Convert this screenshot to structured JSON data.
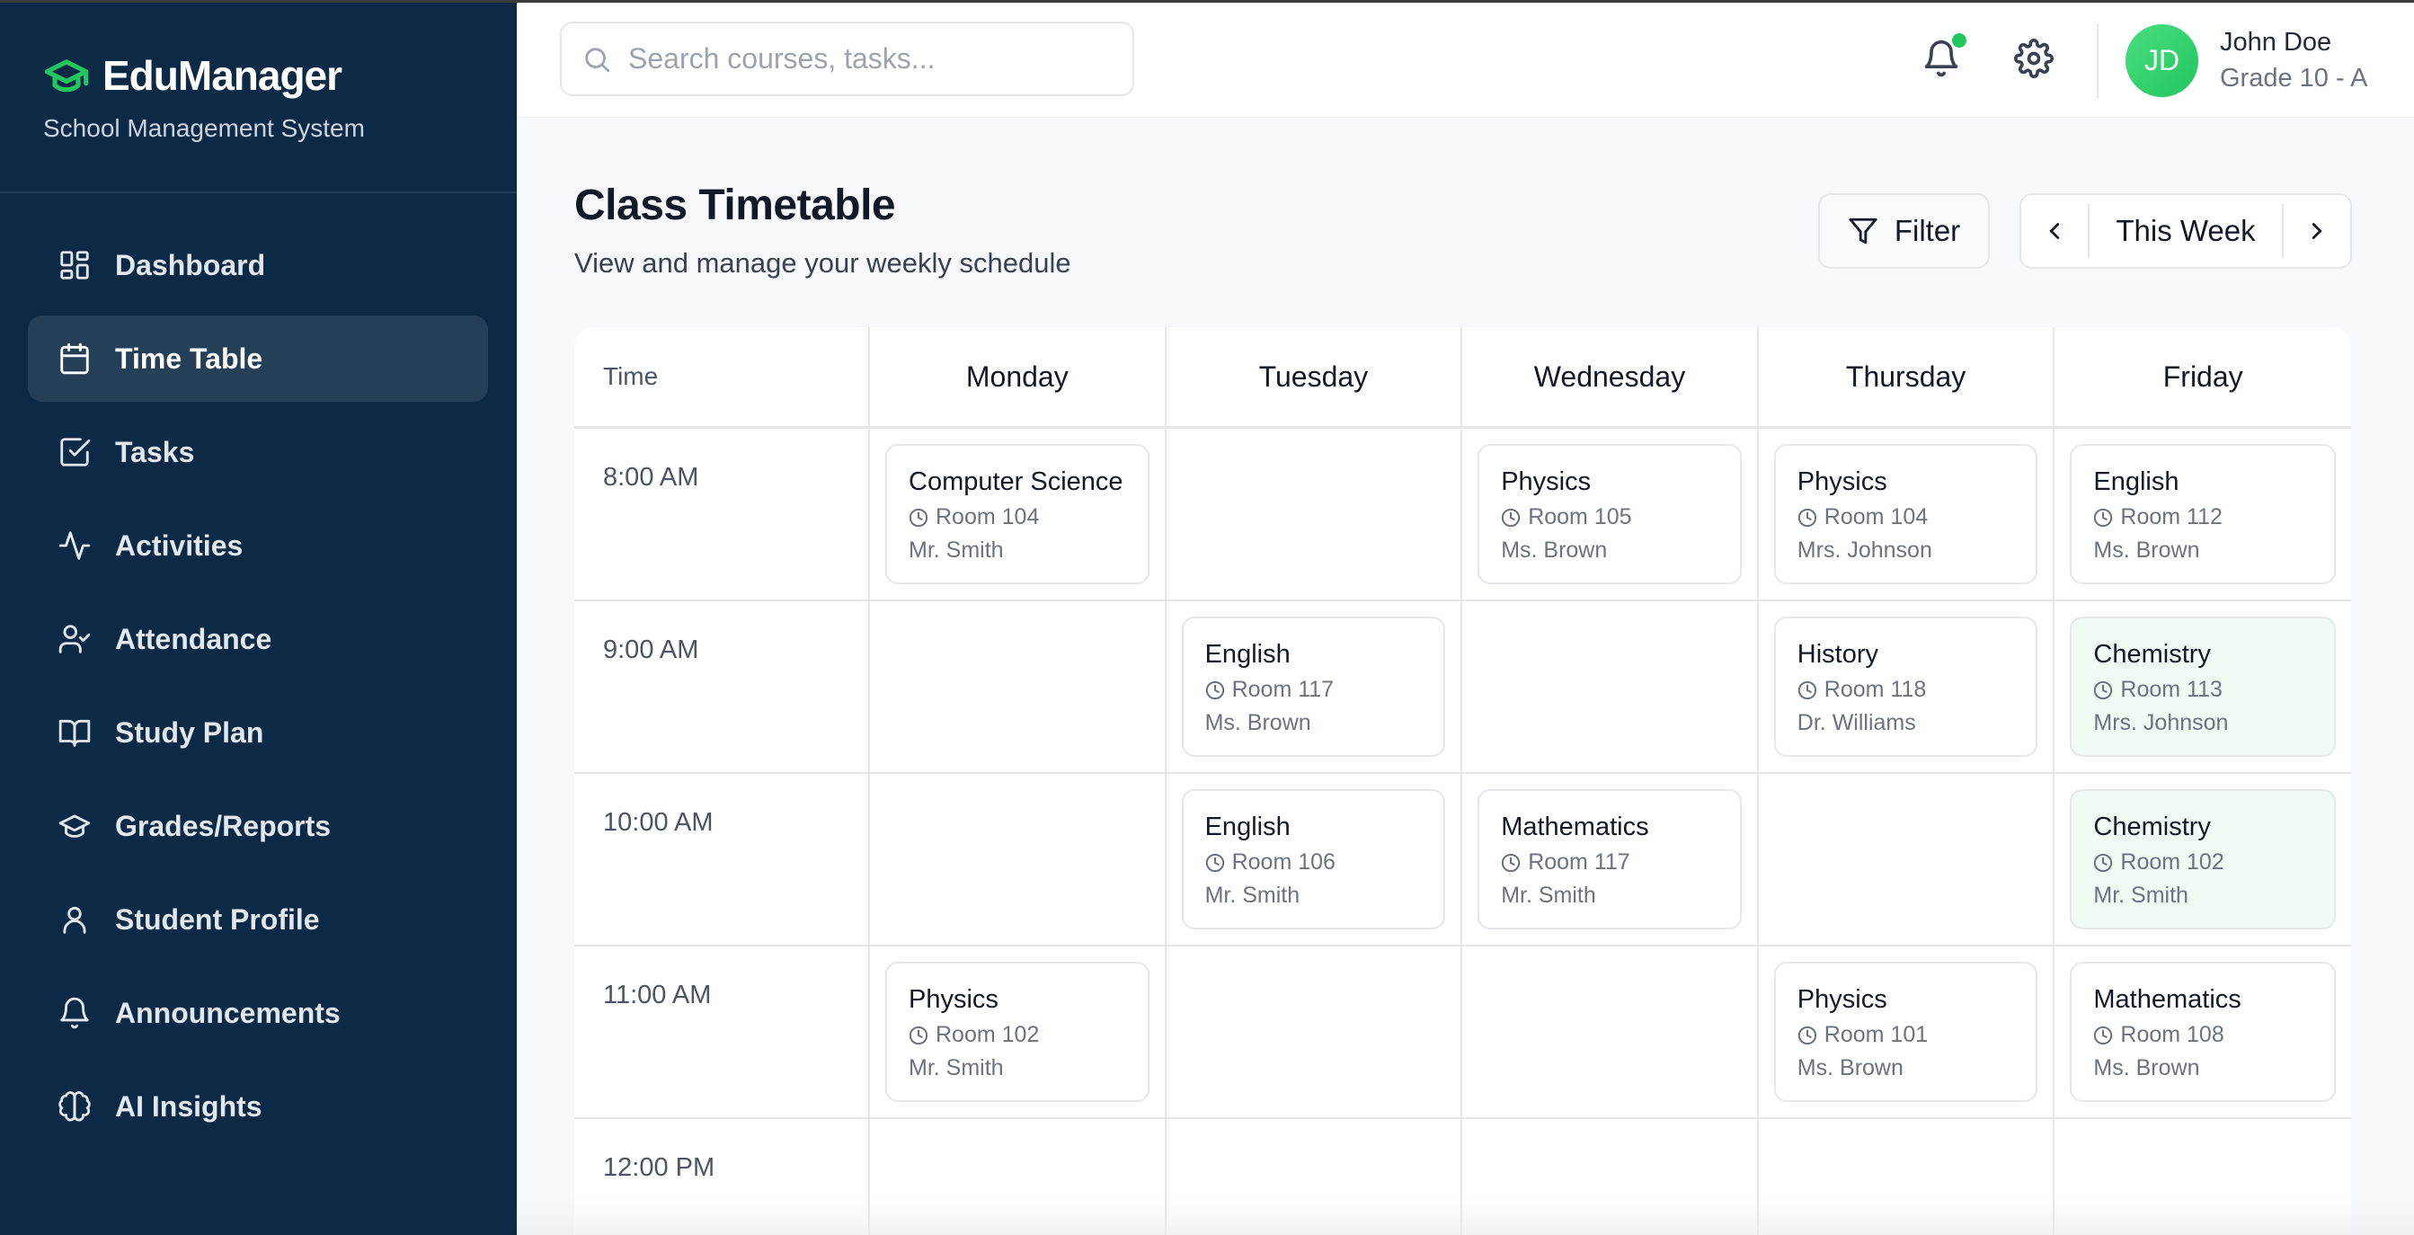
{
  "app": {
    "name": "EduManager",
    "subtitle": "School Management System",
    "accent": "#22c55e",
    "sidebar_bg": "#0c2a45"
  },
  "sidebar": {
    "items": [
      {
        "label": "Dashboard",
        "icon": "dashboard-icon",
        "active": false
      },
      {
        "label": "Time Table",
        "icon": "calendar-icon",
        "active": true
      },
      {
        "label": "Tasks",
        "icon": "checkbox-icon",
        "active": false
      },
      {
        "label": "Activities",
        "icon": "activity-icon",
        "active": false
      },
      {
        "label": "Attendance",
        "icon": "user-check-icon",
        "active": false
      },
      {
        "label": "Study Plan",
        "icon": "book-icon",
        "active": false
      },
      {
        "label": "Grades/Reports",
        "icon": "graduation-cap-icon",
        "active": false
      },
      {
        "label": "Student Profile",
        "icon": "user-icon",
        "active": false
      },
      {
        "label": "Announcements",
        "icon": "bell-icon",
        "active": false
      },
      {
        "label": "AI Insights",
        "icon": "brain-icon",
        "active": false
      }
    ]
  },
  "header": {
    "search_placeholder": "Search courses, tasks...",
    "user": {
      "initials": "JD",
      "name": "John Doe",
      "grade": "Grade 10 - A"
    },
    "notification_dot": true
  },
  "page": {
    "title": "Class Timetable",
    "subtitle": "View and manage your weekly schedule",
    "filter_label": "Filter",
    "week_label": "This Week"
  },
  "timetable": {
    "time_header": "Time",
    "days": [
      "Monday",
      "Tuesday",
      "Wednesday",
      "Thursday",
      "Friday"
    ],
    "rows": [
      {
        "time": "8:00 AM",
        "slots": [
          {
            "subject": "Computer Science",
            "room": "Room 104",
            "teacher": "Mr. Smith"
          },
          null,
          {
            "subject": "Physics",
            "room": "Room 105",
            "teacher": "Ms. Brown"
          },
          {
            "subject": "Physics",
            "room": "Room 104",
            "teacher": "Mrs. Johnson"
          },
          {
            "subject": "English",
            "room": "Room 112",
            "teacher": "Ms. Brown"
          }
        ]
      },
      {
        "time": "9:00 AM",
        "slots": [
          null,
          {
            "subject": "English",
            "room": "Room 117",
            "teacher": "Ms. Brown"
          },
          null,
          {
            "subject": "History",
            "room": "Room 118",
            "teacher": "Dr. Williams"
          },
          {
            "subject": "Chemistry",
            "room": "Room 113",
            "teacher": "Mrs. Johnson",
            "highlight": true
          }
        ]
      },
      {
        "time": "10:00 AM",
        "slots": [
          null,
          {
            "subject": "English",
            "room": "Room 106",
            "teacher": "Mr. Smith"
          },
          {
            "subject": "Mathematics",
            "room": "Room 117",
            "teacher": "Mr. Smith"
          },
          null,
          {
            "subject": "Chemistry",
            "room": "Room 102",
            "teacher": "Mr. Smith",
            "highlight": true
          }
        ]
      },
      {
        "time": "11:00 AM",
        "slots": [
          {
            "subject": "Physics",
            "room": "Room 102",
            "teacher": "Mr. Smith"
          },
          null,
          null,
          {
            "subject": "Physics",
            "room": "Room 101",
            "teacher": "Ms. Brown"
          },
          {
            "subject": "Mathematics",
            "room": "Room 108",
            "teacher": "Ms. Brown"
          }
        ]
      },
      {
        "time": "12:00 PM",
        "slots": [
          null,
          null,
          null,
          null,
          null
        ]
      }
    ]
  }
}
